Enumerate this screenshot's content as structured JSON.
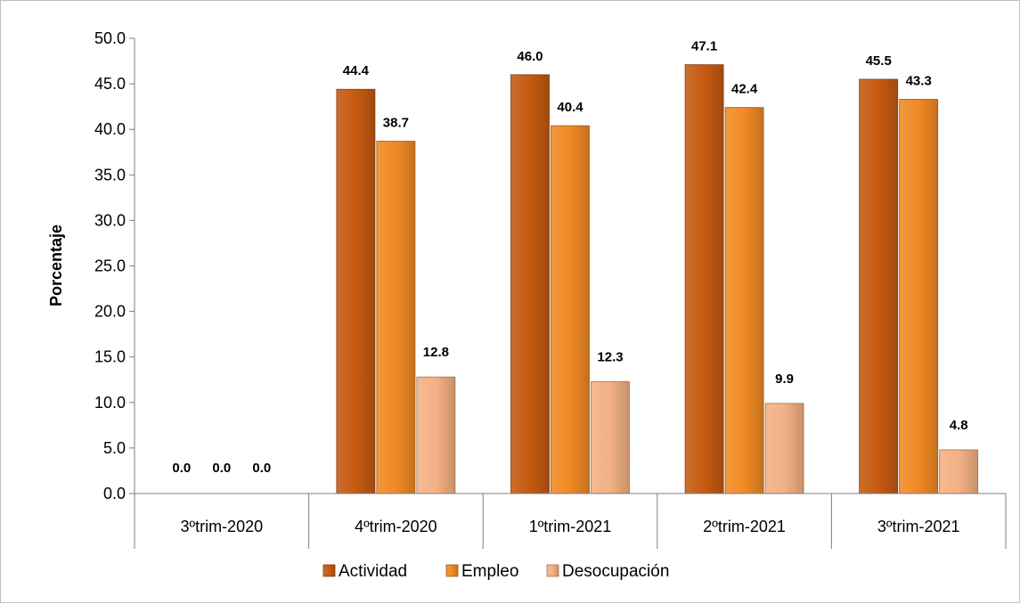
{
  "chart_data": {
    "type": "bar",
    "title": "",
    "xlabel": "",
    "ylabel": "Porcentaje",
    "ylim": [
      0,
      50
    ],
    "yticks": [
      "0.0",
      "5.0",
      "10.0",
      "15.0",
      "20.0",
      "25.0",
      "30.0",
      "35.0",
      "40.0",
      "45.0",
      "50.0"
    ],
    "grid": false,
    "legend_position": "bottom",
    "categories": [
      "3ºtrim-2020",
      "4ºtrim-2020",
      "1ºtrim-2021",
      "2ºtrim-2021",
      "3ºtrim-2021"
    ],
    "series": [
      {
        "name": "Actividad",
        "color": "#c55a11",
        "values": [
          0.0,
          44.4,
          46.0,
          47.1,
          45.5
        ],
        "labels": [
          "0.0",
          "44.4",
          "46.0",
          "47.1",
          "45.5"
        ]
      },
      {
        "name": "Empleo",
        "color": "#f08a24",
        "values": [
          0.0,
          38.7,
          40.4,
          42.4,
          43.3
        ],
        "labels": [
          "0.0",
          "38.7",
          "40.4",
          "42.4",
          "43.3"
        ]
      },
      {
        "name": "Desocupación",
        "color": "#f4b183",
        "values": [
          0.0,
          12.8,
          12.3,
          9.9,
          4.8
        ],
        "labels": [
          "0.0",
          "12.8",
          "12.3",
          "9.9",
          "4.8"
        ]
      }
    ]
  }
}
